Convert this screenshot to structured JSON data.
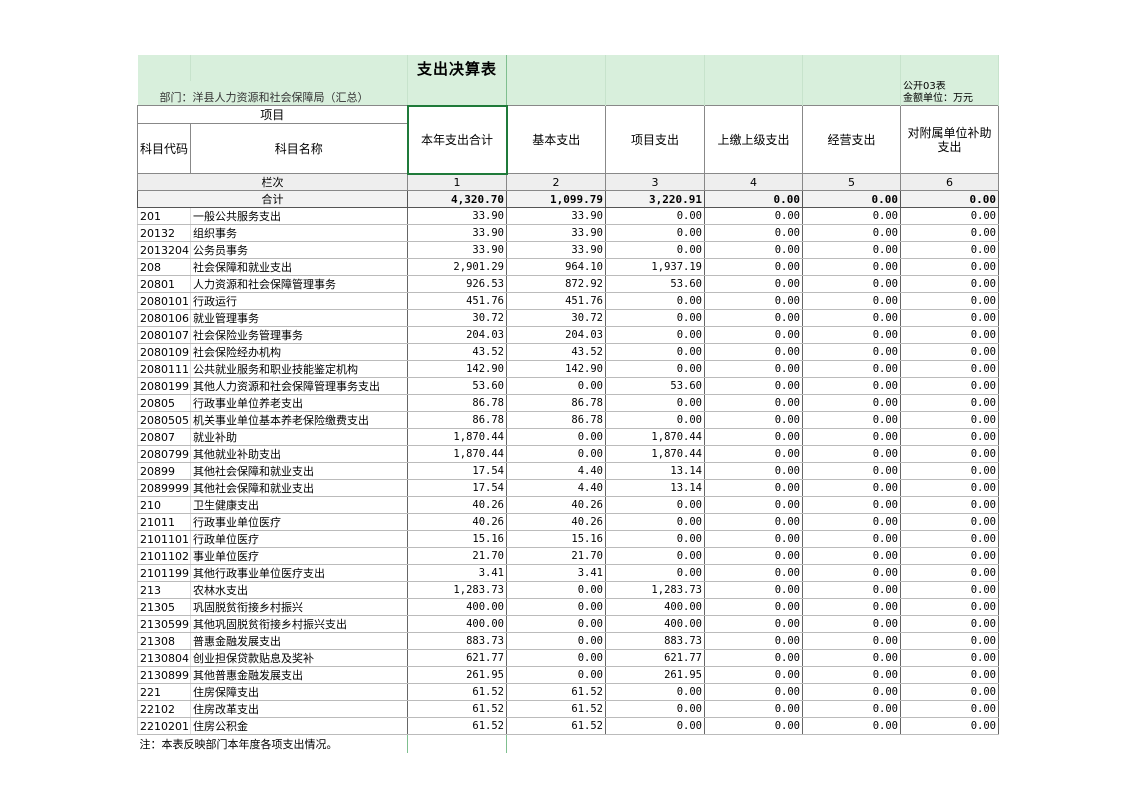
{
  "title": "支出决算表",
  "department": "部门：洋县人力资源和社会保障局（汇总）",
  "form_no": "公开03表",
  "unit": "金额单位：万元",
  "headers": {
    "item": "项目",
    "code": "科目代码",
    "name": "科目名称",
    "col1": "本年支出合计",
    "col2": "基本支出",
    "col3": "项目支出",
    "col4": "上缴上级支出",
    "col5": "经营支出",
    "col6": "对附属单位补助支出",
    "lanci": "栏次",
    "n1": "1",
    "n2": "2",
    "n3": "3",
    "n4": "4",
    "n5": "5",
    "n6": "6"
  },
  "total": {
    "label": "合计",
    "c1": "4,320.70",
    "c2": "1,099.79",
    "c3": "3,220.91",
    "c4": "0.00",
    "c5": "0.00",
    "c6": "0.00"
  },
  "rows": [
    {
      "code": "201",
      "name": "一般公共服务支出",
      "c1": "33.90",
      "c2": "33.90",
      "c3": "0.00",
      "c4": "0.00",
      "c5": "0.00",
      "c6": "0.00"
    },
    {
      "code": "20132",
      "name": "组织事务",
      "c1": "33.90",
      "c2": "33.90",
      "c3": "0.00",
      "c4": "0.00",
      "c5": "0.00",
      "c6": "0.00"
    },
    {
      "code": "2013204",
      "name": "公务员事务",
      "c1": "33.90",
      "c2": "33.90",
      "c3": "0.00",
      "c4": "0.00",
      "c5": "0.00",
      "c6": "0.00"
    },
    {
      "code": "208",
      "name": "社会保障和就业支出",
      "c1": "2,901.29",
      "c2": "964.10",
      "c3": "1,937.19",
      "c4": "0.00",
      "c5": "0.00",
      "c6": "0.00"
    },
    {
      "code": "20801",
      "name": "人力资源和社会保障管理事务",
      "c1": "926.53",
      "c2": "872.92",
      "c3": "53.60",
      "c4": "0.00",
      "c5": "0.00",
      "c6": "0.00"
    },
    {
      "code": "2080101",
      "name": "行政运行",
      "c1": "451.76",
      "c2": "451.76",
      "c3": "0.00",
      "c4": "0.00",
      "c5": "0.00",
      "c6": "0.00"
    },
    {
      "code": "2080106",
      "name": "就业管理事务",
      "c1": "30.72",
      "c2": "30.72",
      "c3": "0.00",
      "c4": "0.00",
      "c5": "0.00",
      "c6": "0.00"
    },
    {
      "code": "2080107",
      "name": "社会保险业务管理事务",
      "c1": "204.03",
      "c2": "204.03",
      "c3": "0.00",
      "c4": "0.00",
      "c5": "0.00",
      "c6": "0.00"
    },
    {
      "code": "2080109",
      "name": "社会保险经办机构",
      "c1": "43.52",
      "c2": "43.52",
      "c3": "0.00",
      "c4": "0.00",
      "c5": "0.00",
      "c6": "0.00"
    },
    {
      "code": "2080111",
      "name": "公共就业服务和职业技能鉴定机构",
      "c1": "142.90",
      "c2": "142.90",
      "c3": "0.00",
      "c4": "0.00",
      "c5": "0.00",
      "c6": "0.00"
    },
    {
      "code": "2080199",
      "name": "其他人力资源和社会保障管理事务支出",
      "c1": "53.60",
      "c2": "0.00",
      "c3": "53.60",
      "c4": "0.00",
      "c5": "0.00",
      "c6": "0.00"
    },
    {
      "code": "20805",
      "name": "行政事业单位养老支出",
      "c1": "86.78",
      "c2": "86.78",
      "c3": "0.00",
      "c4": "0.00",
      "c5": "0.00",
      "c6": "0.00"
    },
    {
      "code": "2080505",
      "name": "机关事业单位基本养老保险缴费支出",
      "c1": "86.78",
      "c2": "86.78",
      "c3": "0.00",
      "c4": "0.00",
      "c5": "0.00",
      "c6": "0.00"
    },
    {
      "code": "20807",
      "name": "就业补助",
      "c1": "1,870.44",
      "c2": "0.00",
      "c3": "1,870.44",
      "c4": "0.00",
      "c5": "0.00",
      "c6": "0.00"
    },
    {
      "code": "2080799",
      "name": "其他就业补助支出",
      "c1": "1,870.44",
      "c2": "0.00",
      "c3": "1,870.44",
      "c4": "0.00",
      "c5": "0.00",
      "c6": "0.00"
    },
    {
      "code": "20899",
      "name": "其他社会保障和就业支出",
      "c1": "17.54",
      "c2": "4.40",
      "c3": "13.14",
      "c4": "0.00",
      "c5": "0.00",
      "c6": "0.00"
    },
    {
      "code": "2089999",
      "name": "其他社会保障和就业支出",
      "c1": "17.54",
      "c2": "4.40",
      "c3": "13.14",
      "c4": "0.00",
      "c5": "0.00",
      "c6": "0.00"
    },
    {
      "code": "210",
      "name": "卫生健康支出",
      "c1": "40.26",
      "c2": "40.26",
      "c3": "0.00",
      "c4": "0.00",
      "c5": "0.00",
      "c6": "0.00"
    },
    {
      "code": "21011",
      "name": "行政事业单位医疗",
      "c1": "40.26",
      "c2": "40.26",
      "c3": "0.00",
      "c4": "0.00",
      "c5": "0.00",
      "c6": "0.00"
    },
    {
      "code": "2101101",
      "name": "行政单位医疗",
      "c1": "15.16",
      "c2": "15.16",
      "c3": "0.00",
      "c4": "0.00",
      "c5": "0.00",
      "c6": "0.00"
    },
    {
      "code": "2101102",
      "name": "事业单位医疗",
      "c1": "21.70",
      "c2": "21.70",
      "c3": "0.00",
      "c4": "0.00",
      "c5": "0.00",
      "c6": "0.00"
    },
    {
      "code": "2101199",
      "name": "其他行政事业单位医疗支出",
      "c1": "3.41",
      "c2": "3.41",
      "c3": "0.00",
      "c4": "0.00",
      "c5": "0.00",
      "c6": "0.00"
    },
    {
      "code": "213",
      "name": "农林水支出",
      "c1": "1,283.73",
      "c2": "0.00",
      "c3": "1,283.73",
      "c4": "0.00",
      "c5": "0.00",
      "c6": "0.00"
    },
    {
      "code": "21305",
      "name": "巩固脱贫衔接乡村振兴",
      "c1": "400.00",
      "c2": "0.00",
      "c3": "400.00",
      "c4": "0.00",
      "c5": "0.00",
      "c6": "0.00"
    },
    {
      "code": "2130599",
      "name": "其他巩固脱贫衔接乡村振兴支出",
      "c1": "400.00",
      "c2": "0.00",
      "c3": "400.00",
      "c4": "0.00",
      "c5": "0.00",
      "c6": "0.00"
    },
    {
      "code": "21308",
      "name": "普惠金融发展支出",
      "c1": "883.73",
      "c2": "0.00",
      "c3": "883.73",
      "c4": "0.00",
      "c5": "0.00",
      "c6": "0.00"
    },
    {
      "code": "2130804",
      "name": "创业担保贷款贴息及奖补",
      "c1": "621.77",
      "c2": "0.00",
      "c3": "621.77",
      "c4": "0.00",
      "c5": "0.00",
      "c6": "0.00"
    },
    {
      "code": "2130899",
      "name": "其他普惠金融发展支出",
      "c1": "261.95",
      "c2": "0.00",
      "c3": "261.95",
      "c4": "0.00",
      "c5": "0.00",
      "c6": "0.00"
    },
    {
      "code": "221",
      "name": "住房保障支出",
      "c1": "61.52",
      "c2": "61.52",
      "c3": "0.00",
      "c4": "0.00",
      "c5": "0.00",
      "c6": "0.00"
    },
    {
      "code": "22102",
      "name": "住房改革支出",
      "c1": "61.52",
      "c2": "61.52",
      "c3": "0.00",
      "c4": "0.00",
      "c5": "0.00",
      "c6": "0.00"
    },
    {
      "code": "2210201",
      "name": "住房公积金",
      "c1": "61.52",
      "c2": "61.52",
      "c3": "0.00",
      "c4": "0.00",
      "c5": "0.00",
      "c6": "0.00"
    }
  ],
  "note": "注：本表反映部门本年度各项支出情况。"
}
